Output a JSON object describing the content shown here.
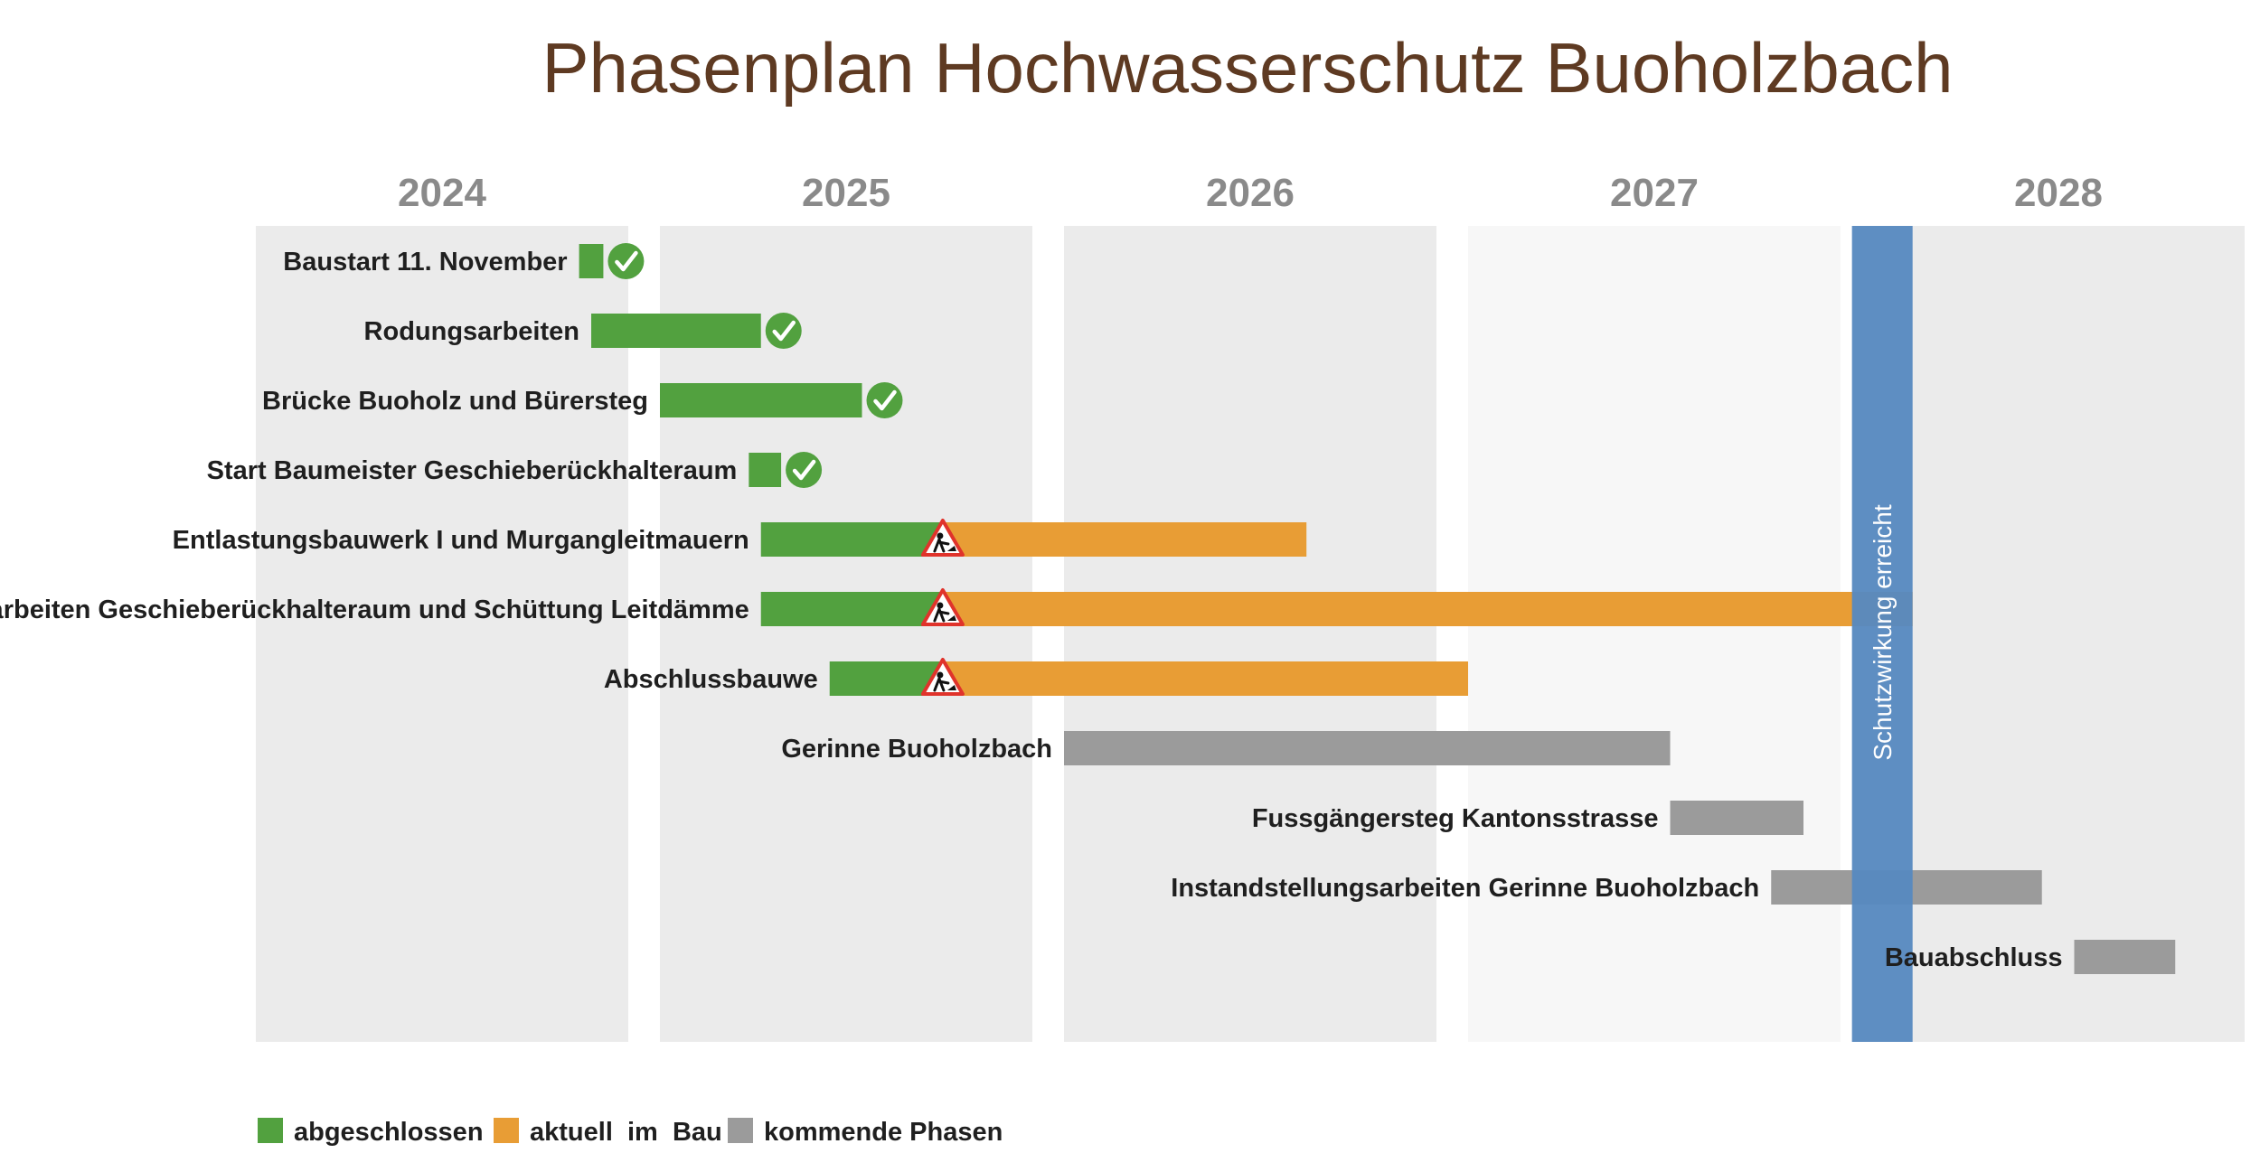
{
  "chart_data": {
    "type": "gantt",
    "title": "Phasenplan Hochwasserschutz Buoholzbach",
    "x_unit": "year",
    "xlim": [
      2024.0,
      2029.0
    ],
    "years": [
      "2024",
      "2025",
      "2026",
      "2027",
      "2028"
    ],
    "colors": {
      "abgeschlossen": "#52a13f",
      "aktuell_im_bau": "#e89d35",
      "kommende_phasen": "#9b9b9b",
      "milestone": "#5789c0",
      "title": "#5e3a22",
      "year_band": "#ebebeb",
      "year_band_light": "#f7f7f7"
    },
    "tasks": [
      {
        "label": "Baustart 11. November",
        "status": "abgeschlossen",
        "segments": [
          {
            "start": 2024.8,
            "end": 2024.86,
            "state": "abgeschlossen"
          }
        ],
        "icon": "check-icon"
      },
      {
        "label": "Rodungsarbeiten",
        "status": "abgeschlossen",
        "segments": [
          {
            "start": 2024.83,
            "end": 2025.25,
            "state": "abgeschlossen"
          }
        ],
        "icon": "check-icon"
      },
      {
        "label": "Brücke Buoholz und Bürersteg",
        "status": "abgeschlossen",
        "segments": [
          {
            "start": 2025.0,
            "end": 2025.5,
            "state": "abgeschlossen"
          }
        ],
        "icon": "check-icon"
      },
      {
        "label": "Start Baumeister Geschieberückhalteraum",
        "status": "abgeschlossen",
        "segments": [
          {
            "start": 2025.22,
            "end": 2025.3,
            "state": "abgeschlossen"
          }
        ],
        "icon": "check-icon"
      },
      {
        "label": "Entlastungsbauwerk I und Murgangleitmauern",
        "status": "aktuell im Bau",
        "segments": [
          {
            "start": 2025.25,
            "end": 2025.7,
            "state": "abgeschlossen"
          },
          {
            "start": 2025.7,
            "end": 2026.6,
            "state": "aktuell_im_bau"
          }
        ],
        "icon": "construction-icon"
      },
      {
        "label": "Erdarbeiten Geschieberückhalteraum und Schüttung Leitdämme",
        "status": "aktuell im Bau",
        "segments": [
          {
            "start": 2025.25,
            "end": 2025.7,
            "state": "abgeschlossen"
          },
          {
            "start": 2025.7,
            "end": 2028.1,
            "state": "aktuell_im_bau"
          }
        ],
        "icon": "construction-icon"
      },
      {
        "label": "Abschlussbauwe",
        "status": "aktuell im Bau",
        "segments": [
          {
            "start": 2025.42,
            "end": 2025.7,
            "state": "abgeschlossen"
          },
          {
            "start": 2025.7,
            "end": 2027.0,
            "state": "aktuell_im_bau"
          }
        ],
        "icon": "construction-icon"
      },
      {
        "label": "Gerinne Buoholzbach",
        "status": "kommende Phasen",
        "segments": [
          {
            "start": 2026.0,
            "end": 2027.5,
            "state": "kommende_phasen"
          }
        ]
      },
      {
        "label": "Fussgängersteg Kantonsstrasse",
        "status": "kommende Phasen",
        "segments": [
          {
            "start": 2027.5,
            "end": 2027.83,
            "state": "kommende_phasen"
          }
        ]
      },
      {
        "label": "Instandstellungsarbeiten Gerinne Buoholzbach",
        "status": "kommende Phasen",
        "segments": [
          {
            "start": 2027.75,
            "end": 2028.42,
            "state": "kommende_phasen"
          }
        ]
      },
      {
        "label": "Bauabschluss",
        "status": "kommende Phasen",
        "segments": [
          {
            "start": 2028.5,
            "end": 2028.75,
            "state": "kommende_phasen"
          }
        ]
      }
    ],
    "milestone": {
      "label": "Schutzwirkung erreicht",
      "start": 2027.95,
      "end": 2028.1
    },
    "legend": {
      "placement": "bottom-left",
      "items": [
        {
          "label": "abgeschlossen",
          "color": "#52a13f"
        },
        {
          "label": "aktuell  im  Bau",
          "color": "#e89d35"
        },
        {
          "label": "kommende Phasen",
          "color": "#9b9b9b"
        }
      ]
    }
  }
}
